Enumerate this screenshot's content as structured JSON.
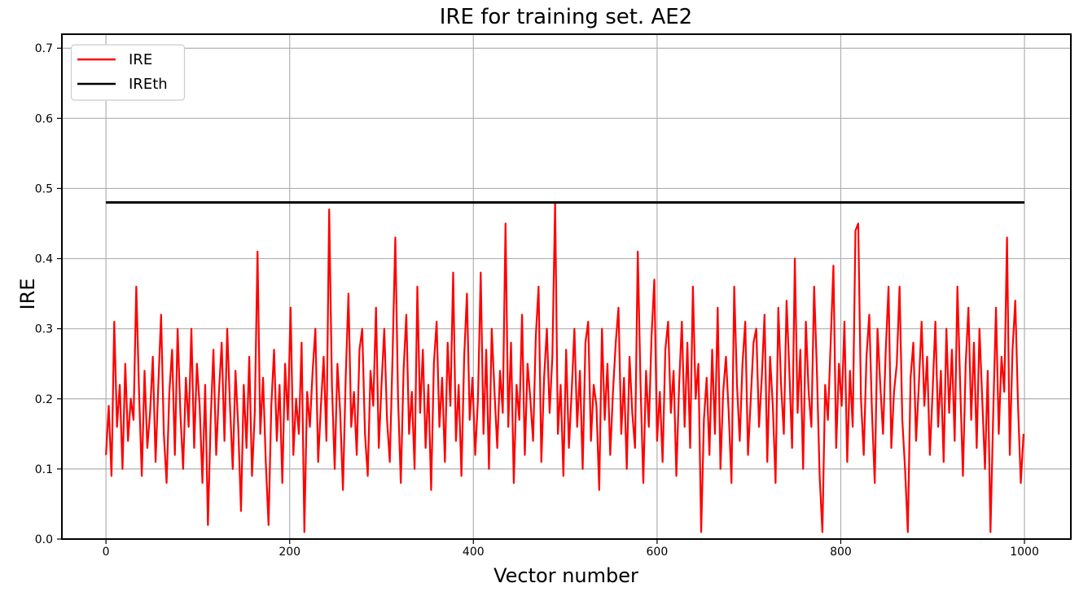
{
  "figure": {
    "title": "IRE for training set. AE2",
    "xlabel": "Vector number",
    "ylabel": "IRE",
    "background": "#ffffff"
  },
  "legend": {
    "position": "upper-left",
    "items": [
      {
        "label": "IRE",
        "color": "#ff0000"
      },
      {
        "label": "IREth",
        "color": "#000000"
      }
    ]
  },
  "chart_data": {
    "type": "line",
    "title": "IRE for training set. AE2",
    "xlabel": "Vector number",
    "ylabel": "IRE",
    "xlim": [
      -48,
      1050.5
    ],
    "ylim": [
      0,
      0.72
    ],
    "xticks": [
      0,
      200,
      400,
      600,
      800,
      1000
    ],
    "xtick_labels": [
      "0",
      "200",
      "400",
      "600",
      "800",
      "1000"
    ],
    "yticks": [
      0,
      0.1,
      0.2,
      0.3,
      0.4,
      0.5,
      0.6,
      0.7
    ],
    "ytick_labels": [
      "0.0",
      "0.1",
      "0.2",
      "0.3",
      "0.4",
      "0.5",
      "0.6",
      "0.7"
    ],
    "grid": true,
    "grid_color": "#b0b0b0",
    "axis_color": "#000000",
    "legend_position": "upper left",
    "series": [
      {
        "name": "IRE",
        "color": "#ff0000",
        "line_width": 2.2,
        "x_start": 0,
        "x_step": 3,
        "values": [
          0.12,
          0.19,
          0.09,
          0.31,
          0.16,
          0.22,
          0.1,
          0.25,
          0.14,
          0.2,
          0.17,
          0.36,
          0.21,
          0.09,
          0.24,
          0.13,
          0.18,
          0.26,
          0.11,
          0.22,
          0.32,
          0.15,
          0.08,
          0.21,
          0.27,
          0.12,
          0.3,
          0.18,
          0.1,
          0.23,
          0.16,
          0.3,
          0.13,
          0.25,
          0.19,
          0.08,
          0.22,
          0.02,
          0.17,
          0.27,
          0.12,
          0.21,
          0.28,
          0.14,
          0.3,
          0.19,
          0.1,
          0.24,
          0.16,
          0.04,
          0.22,
          0.13,
          0.26,
          0.09,
          0.18,
          0.41,
          0.15,
          0.23,
          0.11,
          0.02,
          0.19,
          0.27,
          0.14,
          0.22,
          0.08,
          0.25,
          0.17,
          0.33,
          0.12,
          0.2,
          0.15,
          0.28,
          0.01,
          0.21,
          0.16,
          0.24,
          0.3,
          0.11,
          0.19,
          0.26,
          0.14,
          0.47,
          0.22,
          0.1,
          0.25,
          0.18,
          0.07,
          0.23,
          0.35,
          0.16,
          0.21,
          0.12,
          0.27,
          0.3,
          0.15,
          0.09,
          0.24,
          0.19,
          0.33,
          0.13,
          0.22,
          0.3,
          0.17,
          0.11,
          0.26,
          0.43,
          0.2,
          0.08,
          0.24,
          0.32,
          0.15,
          0.21,
          0.1,
          0.36,
          0.18,
          0.27,
          0.13,
          0.22,
          0.07,
          0.25,
          0.31,
          0.16,
          0.23,
          0.11,
          0.28,
          0.19,
          0.38,
          0.14,
          0.22,
          0.09,
          0.26,
          0.35,
          0.17,
          0.23,
          0.12,
          0.2,
          0.38,
          0.15,
          0.27,
          0.1,
          0.3,
          0.21,
          0.13,
          0.24,
          0.18,
          0.45,
          0.16,
          0.28,
          0.08,
          0.22,
          0.17,
          0.32,
          0.12,
          0.25,
          0.2,
          0.14,
          0.29,
          0.36,
          0.11,
          0.23,
          0.3,
          0.18,
          0.26,
          0.48,
          0.15,
          0.22,
          0.09,
          0.27,
          0.13,
          0.21,
          0.3,
          0.16,
          0.24,
          0.1,
          0.28,
          0.31,
          0.14,
          0.22,
          0.19,
          0.07,
          0.3,
          0.17,
          0.25,
          0.12,
          0.21,
          0.28,
          0.33,
          0.15,
          0.23,
          0.1,
          0.26,
          0.18,
          0.13,
          0.41,
          0.22,
          0.08,
          0.24,
          0.16,
          0.29,
          0.37,
          0.14,
          0.21,
          0.11,
          0.27,
          0.31,
          0.18,
          0.24,
          0.09,
          0.22,
          0.31,
          0.16,
          0.28,
          0.13,
          0.36,
          0.2,
          0.25,
          0.01,
          0.17,
          0.23,
          0.12,
          0.27,
          0.15,
          0.33,
          0.1,
          0.21,
          0.26,
          0.18,
          0.08,
          0.36,
          0.22,
          0.14,
          0.25,
          0.31,
          0.12,
          0.2,
          0.28,
          0.3,
          0.16,
          0.23,
          0.32,
          0.11,
          0.26,
          0.19,
          0.08,
          0.33,
          0.22,
          0.15,
          0.34,
          0.24,
          0.13,
          0.4,
          0.18,
          0.27,
          0.1,
          0.31,
          0.21,
          0.16,
          0.36,
          0.24,
          0.09,
          0.01,
          0.22,
          0.17,
          0.28,
          0.39,
          0.13,
          0.25,
          0.19,
          0.31,
          0.11,
          0.24,
          0.16,
          0.44,
          0.45,
          0.2,
          0.12,
          0.26,
          0.32,
          0.18,
          0.08,
          0.3,
          0.22,
          0.15,
          0.27,
          0.36,
          0.13,
          0.21,
          0.25,
          0.36,
          0.17,
          0.1,
          0.01,
          0.23,
          0.28,
          0.14,
          0.22,
          0.31,
          0.19,
          0.26,
          0.12,
          0.21,
          0.31,
          0.16,
          0.24,
          0.11,
          0.3,
          0.18,
          0.27,
          0.14,
          0.36,
          0.22,
          0.09,
          0.25,
          0.33,
          0.17,
          0.28,
          0.13,
          0.3,
          0.2,
          0.1,
          0.24,
          0.01,
          0.18,
          0.33,
          0.15,
          0.26,
          0.21,
          0.43,
          0.12,
          0.27,
          0.34,
          0.19,
          0.08,
          0.15
        ]
      },
      {
        "name": "IREth",
        "color": "#000000",
        "line_width": 3,
        "x": [
          0,
          1000
        ],
        "values": [
          0.48,
          0.48
        ]
      }
    ]
  }
}
